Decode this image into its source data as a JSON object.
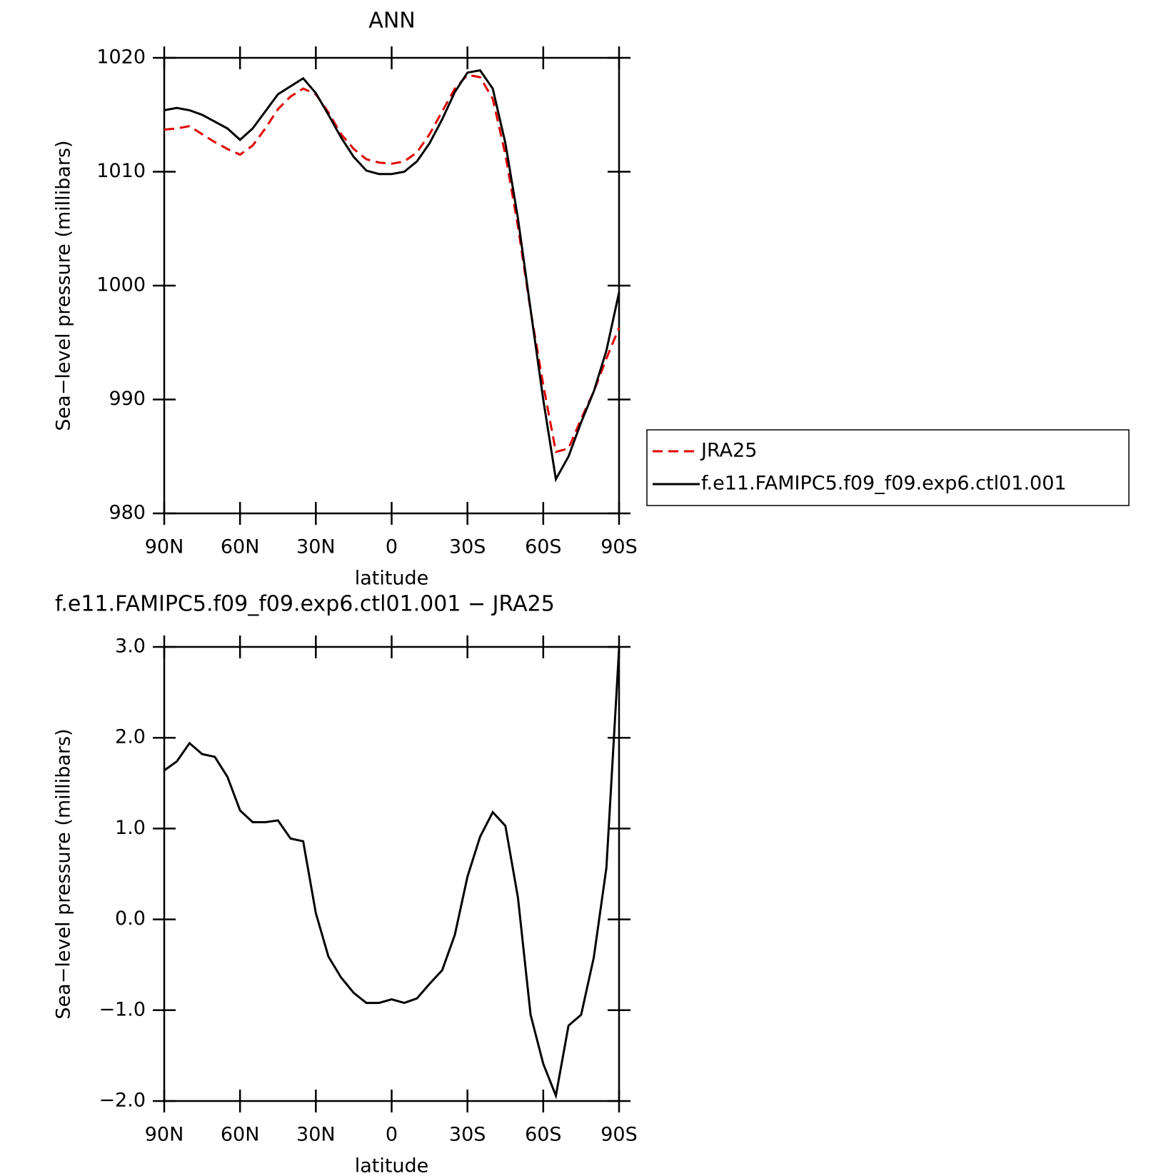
{
  "chart_data": [
    {
      "type": "line",
      "title": "ANN",
      "xlabel": "latitude",
      "ylabel": "Sea−level pressure (millibars)",
      "x": [
        90,
        85,
        80,
        75,
        70,
        65,
        60,
        55,
        50,
        45,
        40,
        35,
        30,
        25,
        20,
        15,
        10,
        5,
        0,
        -5,
        -10,
        -15,
        -20,
        -25,
        -30,
        -35,
        -40,
        -45,
        -50,
        -55,
        -60,
        -65,
        -70,
        -75,
        -80,
        -85,
        -90
      ],
      "xlim": [
        90,
        -90
      ],
      "xticks": [
        {
          "value": 90,
          "label": "90N"
        },
        {
          "value": 60,
          "label": "60N"
        },
        {
          "value": 30,
          "label": "30N"
        },
        0,
        {
          "value": -30,
          "label": "30S"
        },
        {
          "value": -60,
          "label": "60S"
        },
        {
          "value": -90,
          "label": "90S"
        }
      ],
      "ylim": [
        980,
        1020
      ],
      "yticks": [
        980,
        990,
        1000,
        1010,
        1020
      ],
      "legend": "right",
      "series": [
        {
          "name": "JRA25",
          "color": "#e00000",
          "line_style": "dashed",
          "values": [
            1013.7,
            1013.8,
            1014.0,
            1013.3,
            1012.6,
            1012.0,
            1011.5,
            1012.3,
            1013.8,
            1015.5,
            1016.6,
            1017.3,
            1016.8,
            1015.2,
            1013.3,
            1012.0,
            1011.1,
            1010.8,
            1010.7,
            1010.9,
            1011.7,
            1013.3,
            1015.3,
            1017.3,
            1018.5,
            1018.3,
            1016.4,
            1011.5,
            1005.2,
            997.8,
            991.3,
            985.4,
            985.7,
            988.3,
            990.7,
            993.6,
            996.3
          ]
        },
        {
          "name": "f.e11.FAMIPC5.f09_f09.exp6.ctl01.001",
          "color": "#000000",
          "line_style": "solid",
          "values": [
            1015.4,
            1015.6,
            1015.4,
            1015.0,
            1014.4,
            1013.8,
            1012.8,
            1013.8,
            1015.3,
            1016.8,
            1017.5,
            1018.2,
            1016.9,
            1015.0,
            1013.0,
            1011.3,
            1010.1,
            1009.8,
            1009.8,
            1010.0,
            1010.9,
            1012.5,
            1014.6,
            1017.0,
            1018.7,
            1018.9,
            1017.3,
            1012.5,
            1005.9,
            997.9,
            990.0,
            983.0,
            985.0,
            988.0,
            990.7,
            994.3,
            999.4
          ]
        }
      ]
    },
    {
      "type": "line",
      "title": "f.e11.FAMIPC5.f09_f09.exp6.ctl01.001 − JRA25",
      "xlabel": "latitude",
      "ylabel": "Sea−level pressure (millibars)",
      "x": [
        90,
        85,
        80,
        75,
        70,
        65,
        60,
        55,
        50,
        45,
        40,
        35,
        30,
        25,
        20,
        15,
        10,
        5,
        0,
        -5,
        -10,
        -15,
        -20,
        -25,
        -30,
        -35,
        -40,
        -45,
        -50,
        -55,
        -60,
        -65,
        -70,
        -75,
        -80,
        -85,
        -90
      ],
      "xlim": [
        90,
        -90
      ],
      "xticks": [
        {
          "value": 90,
          "label": "90N"
        },
        {
          "value": 60,
          "label": "60N"
        },
        {
          "value": 30,
          "label": "30N"
        },
        0,
        {
          "value": -30,
          "label": "30S"
        },
        {
          "value": -60,
          "label": "60S"
        },
        {
          "value": -90,
          "label": "90S"
        }
      ],
      "ylim": [
        -2,
        3
      ],
      "yticks": [
        {
          "value": -2,
          "label": "−2.0"
        },
        {
          "value": -1,
          "label": "−1.0"
        },
        {
          "value": 0,
          "label": "0.0"
        },
        {
          "value": 1,
          "label": "1.0"
        },
        {
          "value": 2,
          "label": "2.0"
        },
        {
          "value": 3,
          "label": "3.0"
        }
      ],
      "series": [
        {
          "color": "#000000",
          "line_style": "solid",
          "values": [
            1.64,
            1.74,
            1.94,
            1.82,
            1.79,
            1.57,
            1.2,
            1.07,
            1.07,
            1.09,
            0.89,
            0.86,
            0.07,
            -0.41,
            -0.64,
            -0.81,
            -0.92,
            -0.92,
            -0.88,
            -0.92,
            -0.87,
            -0.71,
            -0.56,
            -0.17,
            0.47,
            0.91,
            1.18,
            1.03,
            0.24,
            -1.05,
            -1.59,
            -1.94,
            -1.17,
            -1.05,
            -0.42,
            0.57,
            2.98
          ]
        }
      ]
    }
  ]
}
